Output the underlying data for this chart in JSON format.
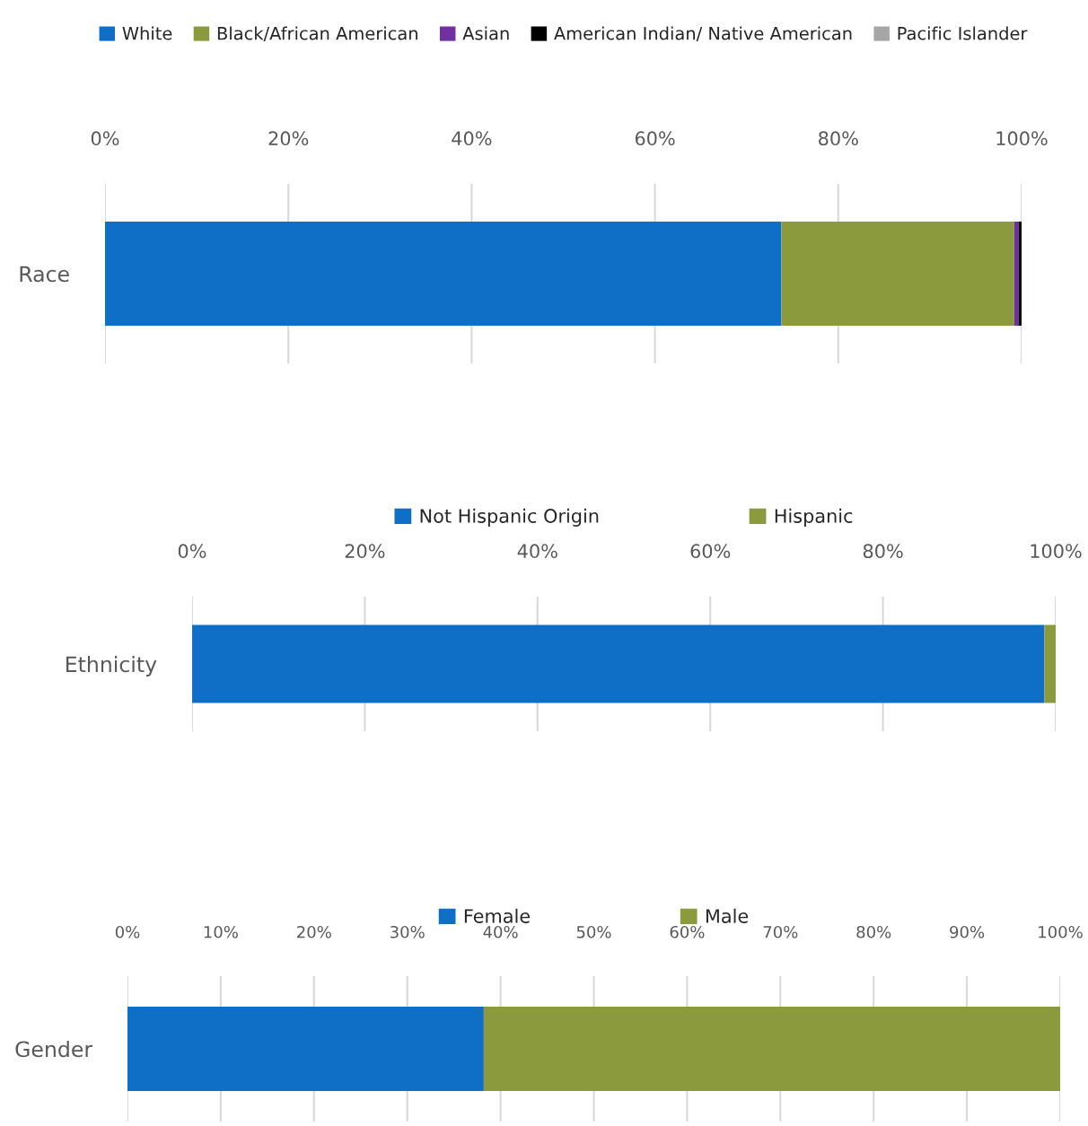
{
  "chart_data": [
    {
      "type": "bar",
      "orientation": "horizontal",
      "stacked": true,
      "categories": [
        "Race"
      ],
      "xlim": [
        0,
        100
      ],
      "xticks": [
        {
          "value": 0,
          "label": "0%"
        },
        {
          "value": 20,
          "label": "20%"
        },
        {
          "value": 40,
          "label": "40%"
        },
        {
          "value": 60,
          "label": "60%"
        },
        {
          "value": 80,
          "label": "80%"
        },
        {
          "value": 100,
          "label": "100%"
        }
      ],
      "grid": "x",
      "legend": "top",
      "series": [
        {
          "name": "White",
          "color": "#0f6fc6",
          "values": [
            73.8
          ]
        },
        {
          "name": "Black/African American",
          "color": "#8c9a3e",
          "values": [
            25.4
          ]
        },
        {
          "name": "Asian",
          "color": "#7030a0",
          "values": [
            0.5
          ]
        },
        {
          "name": "American Indian/ Native American",
          "color": "#000000",
          "values": [
            0.3
          ]
        },
        {
          "name": "Pacific Islander",
          "color": "#a6a6a6",
          "values": [
            0
          ]
        }
      ]
    },
    {
      "type": "bar",
      "orientation": "horizontal",
      "stacked": true,
      "categories": [
        "Ethnicity"
      ],
      "xlim": [
        0,
        100
      ],
      "xticks": [
        {
          "value": 0,
          "label": "0%"
        },
        {
          "value": 20,
          "label": "20%"
        },
        {
          "value": 40,
          "label": "40%"
        },
        {
          "value": 60,
          "label": "60%"
        },
        {
          "value": 80,
          "label": "80%"
        },
        {
          "value": 100,
          "label": "100%"
        }
      ],
      "grid": "x",
      "legend": "top",
      "series": [
        {
          "name": "Not Hispanic Origin",
          "color": "#0f6fc6",
          "values": [
            98.7
          ]
        },
        {
          "name": "Hispanic",
          "color": "#8c9a3e",
          "values": [
            1.3
          ]
        }
      ]
    },
    {
      "type": "bar",
      "orientation": "horizontal",
      "stacked": true,
      "categories": [
        "Gender"
      ],
      "xlim": [
        0,
        100
      ],
      "xticks": [
        {
          "value": 0,
          "label": "0%"
        },
        {
          "value": 10,
          "label": "10%"
        },
        {
          "value": 20,
          "label": "20%"
        },
        {
          "value": 30,
          "label": "30%"
        },
        {
          "value": 40,
          "label": "40%"
        },
        {
          "value": 50,
          "label": "50%"
        },
        {
          "value": 60,
          "label": "60%"
        },
        {
          "value": 70,
          "label": "70%"
        },
        {
          "value": 80,
          "label": "80%"
        },
        {
          "value": 90,
          "label": "90%"
        },
        {
          "value": 100,
          "label": "100%"
        }
      ],
      "grid": "x",
      "legend": "top",
      "series": [
        {
          "name": "Female",
          "color": "#0f6fc6",
          "values": [
            38.2
          ]
        },
        {
          "name": "Male",
          "color": "#8c9a3e",
          "values": [
            61.8
          ]
        }
      ]
    }
  ]
}
